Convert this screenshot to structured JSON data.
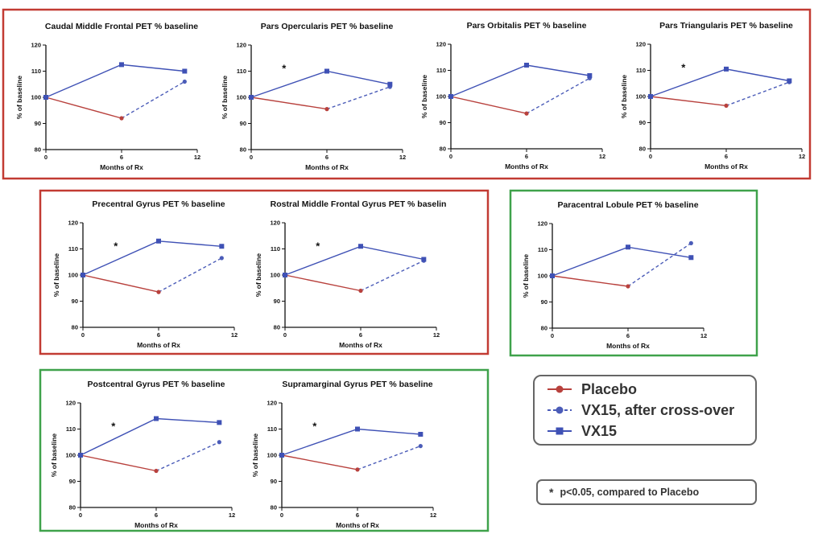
{
  "colors": {
    "placebo": "#b8413d",
    "vx15_after_crossover": "#4b5cb8",
    "vx15": "#3f51b5",
    "box_red": "#c23b33",
    "box_green": "#3fa24b"
  },
  "legend": {
    "items": [
      {
        "key": "placebo",
        "label": "Placebo"
      },
      {
        "key": "crossover",
        "label": "VX15, after cross-over"
      },
      {
        "key": "vx15",
        "label": "VX15"
      }
    ]
  },
  "note": {
    "symbol": "*",
    "text": "p<0.05, compared to Placebo"
  },
  "chart_data": [
    {
      "type": "line",
      "title": "Caudal Middle Frontal PET % baseline",
      "xlabel": "Months of Rx",
      "ylabel": "% of baseline",
      "xlim": [
        0,
        12
      ],
      "ylim": [
        80,
        120
      ],
      "xticks": [
        0,
        6,
        12
      ],
      "yticks": [
        80,
        90,
        100,
        110,
        120
      ],
      "significance": false,
      "series": [
        {
          "name": "Placebo",
          "x": [
            0,
            6
          ],
          "y": [
            100,
            92
          ]
        },
        {
          "name": "VX15, after cross-over",
          "x": [
            6,
            11
          ],
          "y": [
            92,
            106
          ]
        },
        {
          "name": "VX15",
          "x": [
            0,
            6,
            11
          ],
          "y": [
            100,
            112.5,
            110
          ]
        }
      ]
    },
    {
      "type": "line",
      "title": "Pars Opercularis PET % baseline",
      "xlabel": "Months of Rx",
      "ylabel": "% of baseline",
      "xlim": [
        0,
        12
      ],
      "ylim": [
        80,
        120
      ],
      "xticks": [
        0,
        6,
        12
      ],
      "yticks": [
        80,
        90,
        100,
        110,
        120
      ],
      "significance": true,
      "series": [
        {
          "name": "Placebo",
          "x": [
            0,
            6
          ],
          "y": [
            100,
            95.5
          ]
        },
        {
          "name": "VX15, after cross-over",
          "x": [
            6,
            11
          ],
          "y": [
            95.5,
            104
          ]
        },
        {
          "name": "VX15",
          "x": [
            0,
            6,
            11
          ],
          "y": [
            100,
            110,
            105
          ]
        }
      ]
    },
    {
      "type": "line",
      "title": "Pars Orbitalis PET % baseline",
      "xlabel": "Months of Rx",
      "ylabel": "% of baseline",
      "xlim": [
        0,
        12
      ],
      "ylim": [
        80,
        120
      ],
      "xticks": [
        0,
        6,
        12
      ],
      "yticks": [
        80,
        90,
        100,
        110,
        120
      ],
      "significance": false,
      "series": [
        {
          "name": "Placebo",
          "x": [
            0,
            6
          ],
          "y": [
            100,
            93.5
          ]
        },
        {
          "name": "VX15, after cross-over",
          "x": [
            6,
            11
          ],
          "y": [
            93.5,
            107
          ]
        },
        {
          "name": "VX15",
          "x": [
            0,
            6,
            11
          ],
          "y": [
            100,
            112,
            108
          ]
        }
      ]
    },
    {
      "type": "line",
      "title": "Pars Triangularis PET % baseline",
      "xlabel": "Months of Rx",
      "ylabel": "% of baseline",
      "xlim": [
        0,
        12
      ],
      "ylim": [
        80,
        120
      ],
      "xticks": [
        0,
        6,
        12
      ],
      "yticks": [
        80,
        90,
        100,
        110,
        120
      ],
      "significance": true,
      "series": [
        {
          "name": "Placebo",
          "x": [
            0,
            6
          ],
          "y": [
            100,
            96.5
          ]
        },
        {
          "name": "VX15, after cross-over",
          "x": [
            6,
            11
          ],
          "y": [
            96.5,
            105.5
          ]
        },
        {
          "name": "VX15",
          "x": [
            0,
            6,
            11
          ],
          "y": [
            100,
            110.5,
            106
          ]
        }
      ]
    },
    {
      "type": "line",
      "title": "Precentral Gyrus PET % baseline",
      "xlabel": "Months of Rx",
      "ylabel": "% of baseline",
      "xlim": [
        0,
        12
      ],
      "ylim": [
        80,
        120
      ],
      "xticks": [
        0,
        6,
        12
      ],
      "yticks": [
        80,
        90,
        100,
        110,
        120
      ],
      "significance": true,
      "series": [
        {
          "name": "Placebo",
          "x": [
            0,
            6
          ],
          "y": [
            100,
            93.5
          ]
        },
        {
          "name": "VX15, after cross-over",
          "x": [
            6,
            11
          ],
          "y": [
            93.5,
            106.5
          ]
        },
        {
          "name": "VX15",
          "x": [
            0,
            6,
            11
          ],
          "y": [
            100,
            113,
            111
          ]
        }
      ]
    },
    {
      "type": "line",
      "title": "Rostral Middle Frontal Gyrus PET % baseline",
      "xlabel": "Months of Rx",
      "ylabel": "% of baseline",
      "xlim": [
        0,
        12
      ],
      "ylim": [
        80,
        120
      ],
      "xticks": [
        0,
        6,
        12
      ],
      "yticks": [
        80,
        90,
        100,
        110,
        120
      ],
      "significance": true,
      "series": [
        {
          "name": "Placebo",
          "x": [
            0,
            6
          ],
          "y": [
            100,
            94
          ]
        },
        {
          "name": "VX15, after cross-over",
          "x": [
            6,
            11
          ],
          "y": [
            94,
            105.5
          ]
        },
        {
          "name": "VX15",
          "x": [
            0,
            6,
            11
          ],
          "y": [
            100,
            111,
            106
          ]
        }
      ]
    },
    {
      "type": "line",
      "title": "Paracentral Lobule PET % baseline",
      "xlabel": "Months of Rx",
      "ylabel": "% of baseline",
      "xlim": [
        0,
        12
      ],
      "ylim": [
        80,
        120
      ],
      "xticks": [
        0,
        6,
        12
      ],
      "yticks": [
        80,
        90,
        100,
        110,
        120
      ],
      "significance": false,
      "series": [
        {
          "name": "Placebo",
          "x": [
            0,
            6
          ],
          "y": [
            100,
            96
          ]
        },
        {
          "name": "VX15, after cross-over",
          "x": [
            6,
            11
          ],
          "y": [
            96,
            112.5
          ]
        },
        {
          "name": "VX15",
          "x": [
            0,
            6,
            11
          ],
          "y": [
            100,
            111,
            107
          ]
        }
      ]
    },
    {
      "type": "line",
      "title": "Postcentral Gyrus PET % baseline",
      "xlabel": "Months of Rx",
      "ylabel": "% of baseline",
      "xlim": [
        0,
        12
      ],
      "ylim": [
        80,
        120
      ],
      "xticks": [
        0,
        6,
        12
      ],
      "yticks": [
        80,
        90,
        100,
        110,
        120
      ],
      "significance": true,
      "series": [
        {
          "name": "Placebo",
          "x": [
            0,
            6
          ],
          "y": [
            100,
            94
          ]
        },
        {
          "name": "VX15, after cross-over",
          "x": [
            6,
            11
          ],
          "y": [
            94,
            105
          ]
        },
        {
          "name": "VX15",
          "x": [
            0,
            6,
            11
          ],
          "y": [
            100,
            114,
            112.5
          ]
        }
      ]
    },
    {
      "type": "line",
      "title": "Supramarginal Gyrus PET % baseline",
      "xlabel": "Months of Rx",
      "ylabel": "% of baseline",
      "xlim": [
        0,
        12
      ],
      "ylim": [
        80,
        120
      ],
      "xticks": [
        0,
        6,
        12
      ],
      "yticks": [
        80,
        90,
        100,
        110,
        120
      ],
      "significance": true,
      "series": [
        {
          "name": "Placebo",
          "x": [
            0,
            6
          ],
          "y": [
            100,
            94.5
          ]
        },
        {
          "name": "VX15, after cross-over",
          "x": [
            6,
            11
          ],
          "y": [
            94.5,
            103.5
          ]
        },
        {
          "name": "VX15",
          "x": [
            0,
            6,
            11
          ],
          "y": [
            100,
            110,
            108
          ]
        }
      ]
    }
  ]
}
